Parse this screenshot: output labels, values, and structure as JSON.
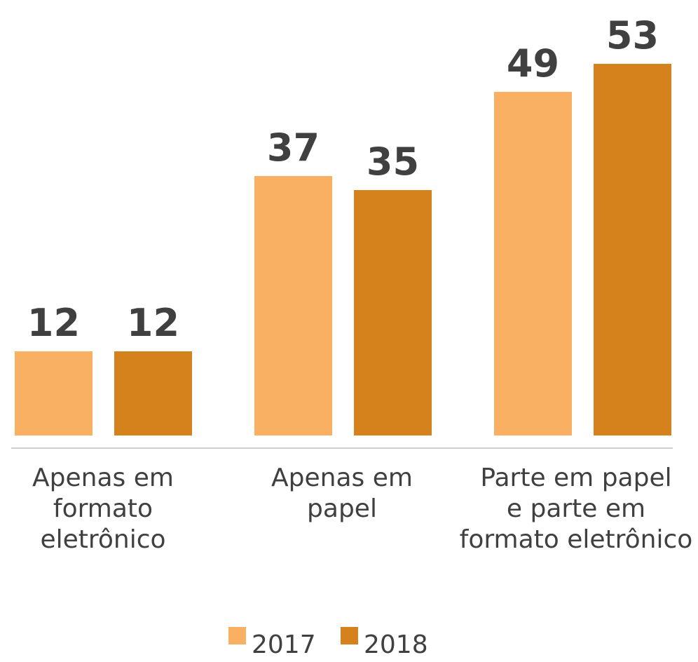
{
  "chart_data": {
    "type": "bar",
    "categories": [
      [
        "Apenas em",
        "formato",
        "eletrônico"
      ],
      [
        "Apenas em",
        "papel"
      ],
      [
        "Parte em papel",
        "e parte em",
        "formato eletrônico"
      ]
    ],
    "series": [
      {
        "name": "2017",
        "values": [
          12,
          37,
          49
        ],
        "color": "#FAB063"
      },
      {
        "name": "2018",
        "values": [
          12,
          35,
          53
        ],
        "color": "#D5821D"
      }
    ],
    "title": "",
    "xlabel": "",
    "ylabel": "",
    "ylim": [
      0,
      53
    ],
    "grid": false,
    "legend_position": "bottom",
    "value_label_color": "#404040",
    "category_label_color": "#404040",
    "baseline_color": "#BFBFBF"
  }
}
